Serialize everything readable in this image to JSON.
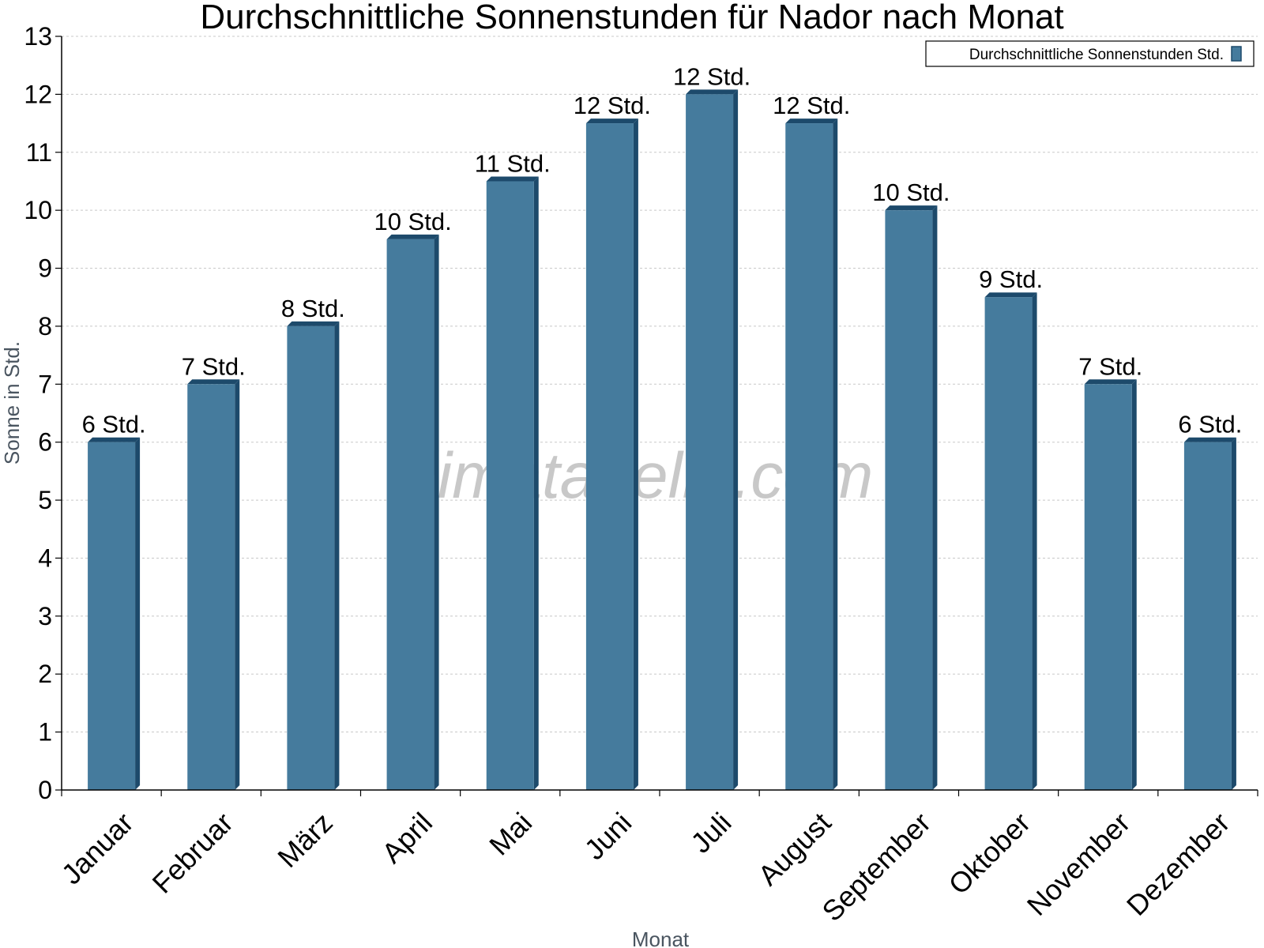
{
  "chart_data": {
    "type": "bar",
    "title": "Durchschnittliche Sonnenstunden für Nador nach Monat",
    "xlabel": "Monat",
    "ylabel": "Sonne in Std.",
    "ylim": [
      0,
      13
    ],
    "yticks": [
      "0",
      "1",
      "2",
      "3",
      "4",
      "5",
      "6",
      "7",
      "8",
      "9",
      "10",
      "11",
      "12",
      "13"
    ],
    "grid": true,
    "legend_position": "top-right",
    "categories": [
      "Januar",
      "Februar",
      "März",
      "April",
      "Mai",
      "Juni",
      "Juli",
      "August",
      "September",
      "Oktober",
      "November",
      "Dezember"
    ],
    "series": [
      {
        "name": "Durchschnittliche Sonnenstunden Std.",
        "values": [
          6,
          7,
          8,
          9.5,
          10.5,
          11.5,
          12,
          11.5,
          10,
          8.5,
          7,
          6
        ],
        "labels": [
          "6 Std.",
          "7 Std.",
          "8 Std.",
          "10 Std.",
          "11 Std.",
          "12 Std.",
          "12 Std.",
          "12 Std.",
          "10 Std.",
          "9 Std.",
          "7 Std.",
          "6 Std."
        ]
      }
    ],
    "colors": {
      "bar": "#457b9d",
      "bar_side": "#1d4a6b",
      "bar_top": "#1d4a6b",
      "grid": "#c8c8c8",
      "axis": "#000000"
    }
  },
  "watermark": "klimatabelle.com"
}
